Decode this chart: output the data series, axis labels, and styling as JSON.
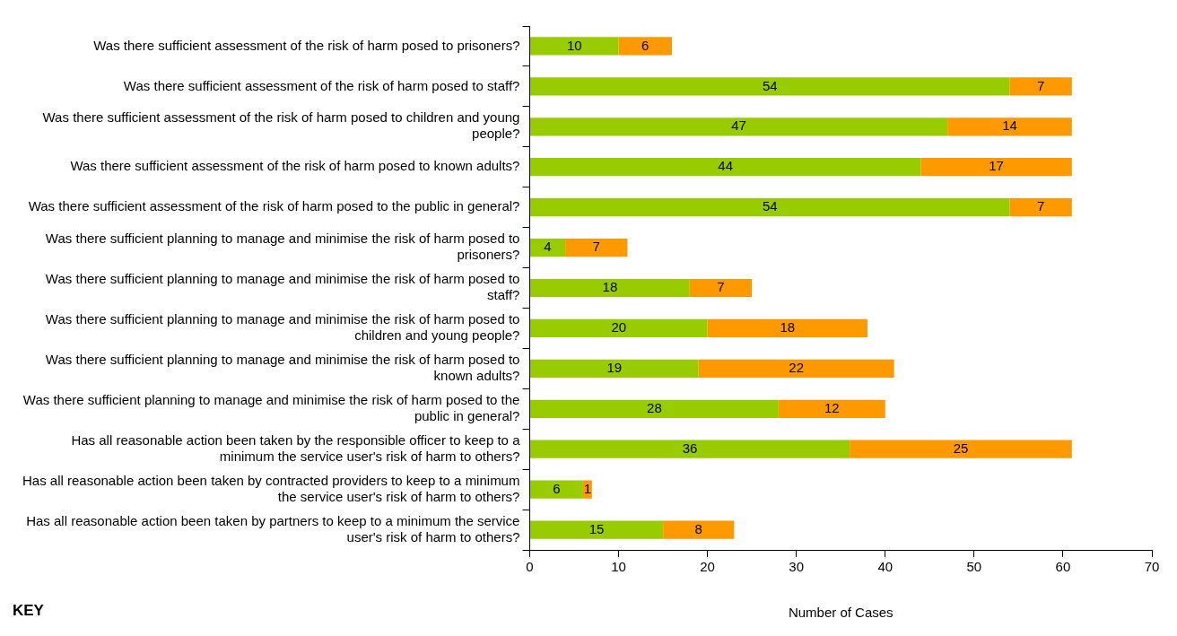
{
  "chart_data": {
    "type": "bar",
    "orientation": "horizontal",
    "stacked": true,
    "xlabel": "Number of Cases",
    "categories": [
      "Was there sufficient assessment of the risk of harm posed to prisoners?",
      "Was there sufficient assessment of the risk of harm posed to staff?",
      "Was there sufficient assessment of the risk of harm posed to children and young people?",
      "Was there sufficient assessment of the risk of harm posed to known adults?",
      "Was there sufficient assessment of the risk of harm posed to the public in general?",
      "Was there sufficient planning to manage and minimise the risk of harm posed to prisoners?",
      "Was there sufficient planning to manage and minimise the risk of harm posed to staff?",
      "Was there sufficient planning to manage and minimise the risk of harm posed to children and young people?",
      "Was there sufficient planning to manage and minimise the risk of harm posed to known adults?",
      "Was there sufficient planning to manage and minimise the risk of harm posed to the public in general?",
      "Has all reasonable action been taken by the responsible officer to keep to a minimum the service user's risk of harm to others?",
      "Has all reasonable action been taken by contracted providers to keep to a minimum the service user's risk of harm to others?",
      "Has all reasonable action been taken by partners to keep to a minimum the service user's risk of harm to others?"
    ],
    "series": [
      {
        "color": "#99cc00",
        "values": [
          10,
          54,
          47,
          44,
          54,
          4,
          18,
          20,
          19,
          28,
          36,
          6,
          15
        ]
      },
      {
        "color": "#ff9900",
        "values": [
          6,
          7,
          14,
          17,
          7,
          7,
          7,
          18,
          22,
          12,
          25,
          1,
          8
        ]
      }
    ],
    "xlim": [
      0,
      70
    ],
    "xticks": [
      0,
      10,
      20,
      30,
      40,
      50,
      60,
      70
    ],
    "grid": false,
    "legend": false,
    "data_labels": true,
    "annotations": [
      "KEY"
    ]
  }
}
